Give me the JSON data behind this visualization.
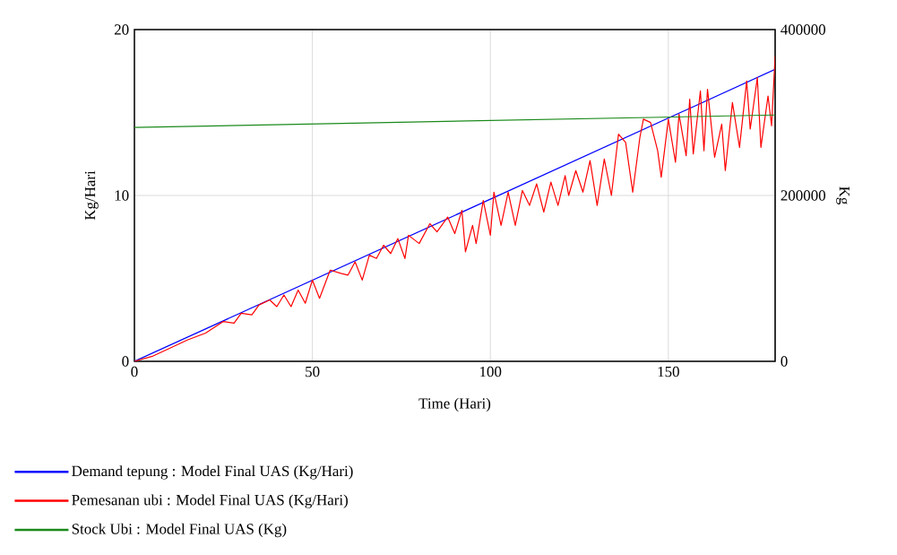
{
  "chart_data": {
    "type": "line",
    "xlabel": "Time (Hari)",
    "ylabel": "Kg/Hari",
    "y2label": "Kg",
    "xlim": [
      0,
      180
    ],
    "xticks": [
      0,
      50,
      100,
      150
    ],
    "ylim": [
      0,
      20
    ],
    "yticks": [
      0,
      10,
      20
    ],
    "y2lim": [
      0,
      400000
    ],
    "y2ticks": [
      0,
      200000,
      400000
    ],
    "grid": true,
    "legend": "bottom",
    "series": [
      {
        "name": "Demand tepung : Model Final UAS (Kg/Hari)",
        "color": "#0000ff",
        "x": [
          0,
          180
        ],
        "values": [
          0,
          17.6
        ]
      },
      {
        "name": "Pemesanan ubi : Model Final UAS (Kg/Hari)",
        "color": "#ff0000",
        "x": [
          0,
          5,
          10,
          15,
          20,
          25,
          28,
          30,
          33,
          35,
          38,
          40,
          42,
          44,
          46,
          48,
          50,
          52,
          55,
          58,
          60,
          62,
          64,
          66,
          68,
          70,
          72,
          74,
          76,
          77,
          80,
          83,
          85,
          88,
          90,
          92,
          93,
          95,
          96,
          98,
          100,
          101,
          103,
          105,
          107,
          109,
          111,
          113,
          115,
          117,
          119,
          121,
          122,
          124,
          126,
          128,
          130,
          132,
          134,
          136,
          138,
          140,
          142,
          143,
          145,
          147,
          148,
          150,
          152,
          153,
          155,
          156,
          157,
          159,
          160,
          161,
          163,
          165,
          166,
          168,
          170,
          172,
          173,
          175,
          176,
          178,
          179,
          180
        ],
        "values": [
          0,
          0.3,
          0.8,
          1.3,
          1.7,
          2.4,
          2.3,
          2.9,
          2.8,
          3.4,
          3.7,
          3.3,
          4.0,
          3.3,
          4.3,
          3.5,
          4.9,
          3.8,
          5.5,
          5.3,
          5.2,
          6.0,
          4.9,
          6.4,
          6.2,
          7.0,
          6.5,
          7.4,
          6.2,
          7.6,
          7.1,
          8.3,
          7.8,
          8.7,
          7.7,
          9.1,
          6.6,
          8.2,
          7.1,
          9.7,
          7.6,
          10.2,
          8.2,
          10.2,
          8.2,
          10.3,
          9.4,
          10.7,
          9.0,
          10.8,
          9.4,
          11.2,
          10.0,
          11.5,
          10.2,
          12.1,
          9.4,
          12.2,
          10.0,
          13.7,
          13.2,
          10.2,
          13.5,
          14.6,
          14.4,
          12.7,
          11.1,
          14.6,
          12.0,
          14.9,
          12.4,
          15.8,
          12.5,
          16.3,
          12.7,
          16.4,
          12.3,
          14.3,
          11.5,
          15.6,
          12.9,
          16.9,
          14.0,
          17.1,
          12.9,
          16.0,
          14.2,
          18.4
        ]
      },
      {
        "name": "Stock Ubi : Model Final UAS (Kg)",
        "color": "#1a8a1a",
        "axis": "y2",
        "x": [
          0,
          180
        ],
        "values": [
          282000,
          297000
        ]
      }
    ]
  }
}
